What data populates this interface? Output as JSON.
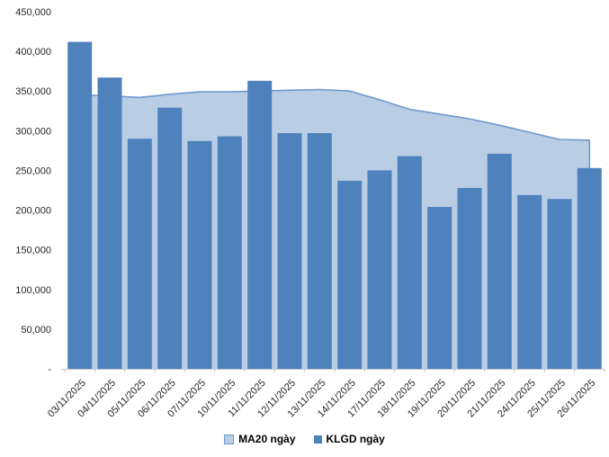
{
  "chart_data": {
    "type": "combo",
    "title": "",
    "xlabel": "",
    "ylabel": "",
    "categories": [
      "03/11/2025",
      "04/11/2025",
      "05/11/2025",
      "06/11/2025",
      "07/11/2025",
      "10/11/2025",
      "11/11/2025",
      "12/11/2025",
      "13/11/2025",
      "14/11/2025",
      "17/11/2025",
      "18/11/2025",
      "19/11/2025",
      "20/11/2025",
      "21/11/2025",
      "24/11/2025",
      "25/11/2025",
      "26/11/2025"
    ],
    "series": [
      {
        "name": "MA20 ngày",
        "type": "area",
        "color": "#B9CDE5",
        "line_color": "#6F99CC",
        "values": [
          345000,
          344000,
          342000,
          346000,
          349000,
          349000,
          350000,
          351000,
          352000,
          350000,
          339000,
          327000,
          321000,
          315000,
          307000,
          298000,
          289000,
          288000
        ]
      },
      {
        "name": "KLGD ngày",
        "type": "bar",
        "color": "#4F81BD",
        "values": [
          412000,
          367000,
          290000,
          329000,
          287000,
          293000,
          363000,
          297000,
          297000,
          237000,
          250000,
          268000,
          204000,
          228000,
          271000,
          219000,
          214000,
          253000
        ]
      }
    ],
    "ylim": [
      0,
      450000
    ],
    "yticks": [
      {
        "value": 0,
        "label": "-"
      },
      {
        "value": 50000,
        "label": "50,000"
      },
      {
        "value": 100000,
        "label": "100,000"
      },
      {
        "value": 150000,
        "label": "150,000"
      },
      {
        "value": 200000,
        "label": "200,000"
      },
      {
        "value": 250000,
        "label": "250,000"
      },
      {
        "value": 300000,
        "label": "300,000"
      },
      {
        "value": 350000,
        "label": "350,000"
      },
      {
        "value": 400000,
        "label": "400,000"
      },
      {
        "value": 450000,
        "label": "450,000"
      }
    ],
    "grid": false,
    "legend_position": "bottom",
    "axis_color": "#C6C6C6",
    "text_color": "#262626"
  }
}
